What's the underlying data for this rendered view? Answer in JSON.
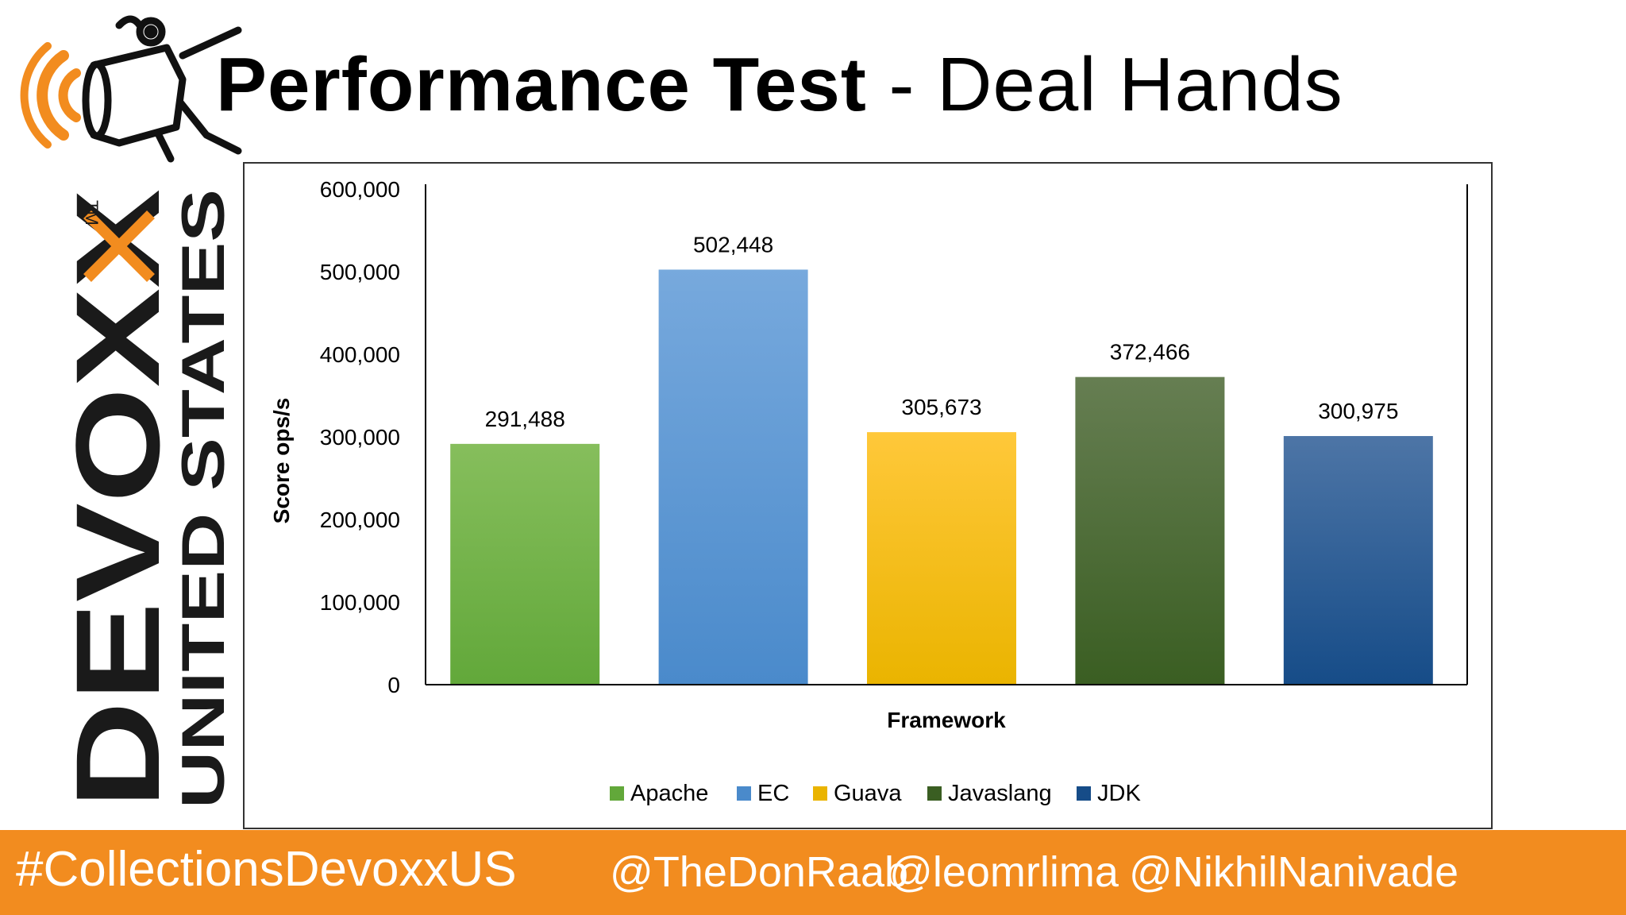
{
  "slide": {
    "title_bold": "Performance Test",
    "title_sep": " - ",
    "title_rest": "Deal Hands"
  },
  "brand": {
    "name": "DEVOXX",
    "trademark": "TM",
    "region": "UNITED STATES",
    "colors": {
      "dark": "#1a1a1a",
      "accent": "#f28c1f"
    }
  },
  "footer": {
    "hashtag": "#CollectionsDevoxxUS",
    "handles": [
      "@TheDonRaab",
      "@leomrlima",
      "@NikhilNanivade"
    ],
    "color": "#f28c1f"
  },
  "chart_data": {
    "type": "bar",
    "title": "",
    "xlabel": "Framework",
    "ylabel": "Score ops/s",
    "categories": [
      "Apache",
      "EC",
      "Guava",
      "Javaslang",
      "JDK"
    ],
    "values": [
      291488,
      502448,
      305673,
      372466,
      300975
    ],
    "value_labels": [
      "291,488",
      "502,448",
      "305,673",
      "372,466",
      "300,975"
    ],
    "ylim": [
      0,
      600000
    ],
    "yticks": [
      0,
      100000,
      200000,
      300000,
      400000,
      500000,
      600000
    ],
    "ytick_labels": [
      "0",
      "100,000",
      "200,000",
      "300,000",
      "400,000",
      "500,000",
      "600,000"
    ],
    "colors": {
      "Apache": [
        "#86be5c",
        "#62a83a"
      ],
      "EC": [
        "#77a9dd",
        "#4a8acb"
      ],
      "Guava": [
        "#ffc83a",
        "#eab400"
      ],
      "Javaslang": [
        "#667e52",
        "#3a5e22"
      ],
      "JDK": [
        "#4d75a6",
        "#164c88"
      ]
    },
    "grid": false,
    "legend_position": "bottom"
  }
}
